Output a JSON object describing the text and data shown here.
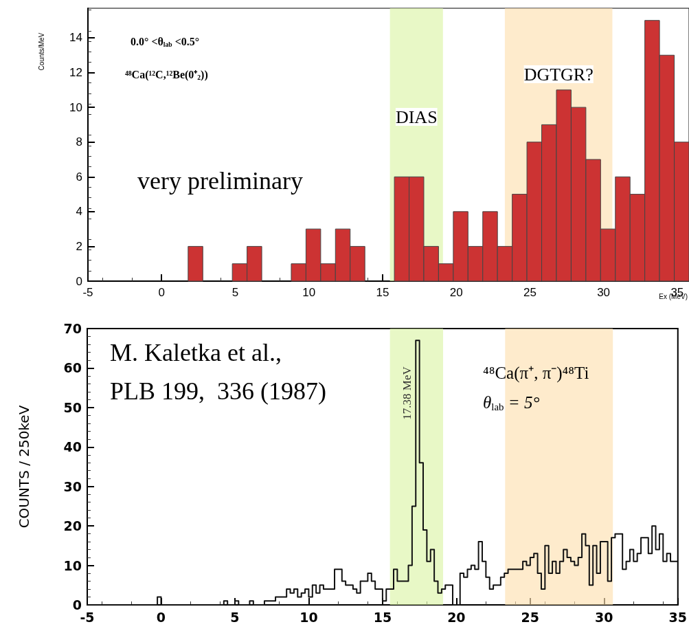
{
  "chart_data": [
    {
      "type": "histogram",
      "xlabel": "Ex (MeV)",
      "ylabel": "Counts/MeV",
      "color": "#cc3333",
      "bins": [
        1.8,
        2.8,
        3.8,
        4.8,
        5.8,
        6.8,
        7.8,
        8.8,
        9.8,
        10.8,
        11.8,
        12.8,
        13.8,
        14.8,
        15.8,
        16.8,
        17.8,
        18.8,
        19.8,
        20.8,
        21.8,
        22.8,
        23.8,
        24.8,
        25.8,
        26.8,
        27.8,
        28.8,
        29.8,
        30.8,
        31.8,
        32.8,
        33.8,
        34.8,
        35.8
      ],
      "values": [
        2,
        0,
        0,
        1,
        2,
        0,
        0,
        1,
        3,
        1,
        3,
        2,
        0,
        0,
        6,
        6,
        2,
        1,
        4,
        2,
        4,
        2,
        5,
        8,
        9,
        11,
        10,
        7,
        3,
        6,
        5,
        15,
        13,
        8
      ],
      "xlim": [
        -5,
        35.8
      ],
      "xticks": [
        -5,
        0,
        5,
        10,
        15,
        20,
        25,
        30,
        35
      ],
      "ylim": [
        0,
        15.7
      ],
      "yticks": [
        0,
        2,
        4,
        6,
        8,
        10,
        12,
        14
      ],
      "bands": [
        {
          "axis": "x",
          "from": 15.5,
          "to": 19.1,
          "label": "DIAS",
          "color": "#dcf5a8"
        },
        {
          "axis": "x",
          "from": 23.3,
          "to": 30.6,
          "label": "DGTGR?",
          "color": "#fde0b0"
        }
      ],
      "annotations": [
        "0.0° <θ$_{lab}$ <0.5°",
        "⁴⁸Ca(¹²C,¹²Be(0⁺$_{2}$))",
        "very preliminary"
      ]
    },
    {
      "type": "step",
      "ylabel": "COUNTS / 250keV",
      "series": [
        {
          "color": "#111111",
          "x": [
            -5,
            -0.25,
            0,
            4.25,
            4.5,
            5,
            5.25,
            6,
            6.25,
            7,
            7.75,
            8.5,
            8.75,
            9,
            9.25,
            9.5,
            9.75,
            10,
            10.25,
            10.5,
            10.75,
            11,
            11.75,
            12.25,
            12.5,
            13,
            13.25,
            13.5,
            14,
            14.25,
            14.5,
            15,
            15.25,
            15.75,
            16,
            16.75,
            17,
            17.25,
            17.5,
            17.75,
            18,
            18.25,
            18.5,
            18.75,
            19,
            19.25,
            19.75,
            20.25,
            20.5,
            20.75,
            21,
            21.25,
            21.5,
            21.75,
            22,
            22.25,
            22.5,
            23,
            23.25,
            23.5,
            24.25,
            24.5,
            24.75,
            25,
            25.25,
            25.5,
            25.75,
            26,
            26.25,
            26.5,
            26.75,
            27,
            27.25,
            27.5,
            27.75,
            28,
            28.25,
            28.5,
            28.75,
            29,
            29.25,
            29.5,
            29.75,
            30.25,
            30.5,
            30.75,
            31.25,
            31.5,
            31.75,
            32,
            32.25,
            32.5,
            33,
            33.25,
            33.5,
            33.75,
            34,
            34.25,
            34.5,
            35
          ],
          "values": [
            0,
            2,
            0,
            1,
            0,
            1,
            0,
            1,
            0,
            1,
            2,
            4,
            3,
            4,
            2,
            3,
            4,
            2,
            5,
            3,
            5,
            4,
            9,
            6,
            5,
            4,
            3,
            6,
            8,
            6,
            4,
            1,
            4,
            9,
            6,
            10,
            25,
            67,
            36,
            19,
            11,
            14,
            6,
            3,
            4,
            5,
            0,
            8,
            7,
            9,
            10,
            9,
            16,
            11,
            7,
            4,
            5,
            7,
            8,
            9,
            9,
            11,
            10,
            12,
            13,
            8,
            4,
            15,
            8,
            11,
            8,
            11,
            14,
            12,
            11,
            10,
            12,
            18,
            15,
            5,
            15,
            8,
            16,
            6,
            17,
            18,
            9,
            11,
            14,
            11,
            13,
            17,
            13,
            20,
            14,
            18,
            11,
            13,
            11,
            11
          ]
        }
      ],
      "xlim": [
        -5,
        35
      ],
      "xticks": [
        -5,
        0,
        5,
        10,
        15,
        20,
        25,
        30,
        35
      ],
      "ylim": [
        0,
        70
      ],
      "yticks": [
        0,
        10,
        20,
        30,
        40,
        50,
        60,
        70
      ],
      "bands": [
        {
          "axis": "x",
          "from": 15.5,
          "to": 19.1,
          "color": "#dcf5a8"
        },
        {
          "axis": "x",
          "from": 23.3,
          "to": 30.6,
          "color": "#fde0b0"
        }
      ],
      "annotations": [
        "M. Kaletka et al.,\nPLB 199,  336 (1987)",
        "17.38 MeV",
        "⁴⁸Ca(π⁺, π⁻)⁴⁸Ti",
        "θ$_{lab}$ = 5°"
      ]
    }
  ]
}
